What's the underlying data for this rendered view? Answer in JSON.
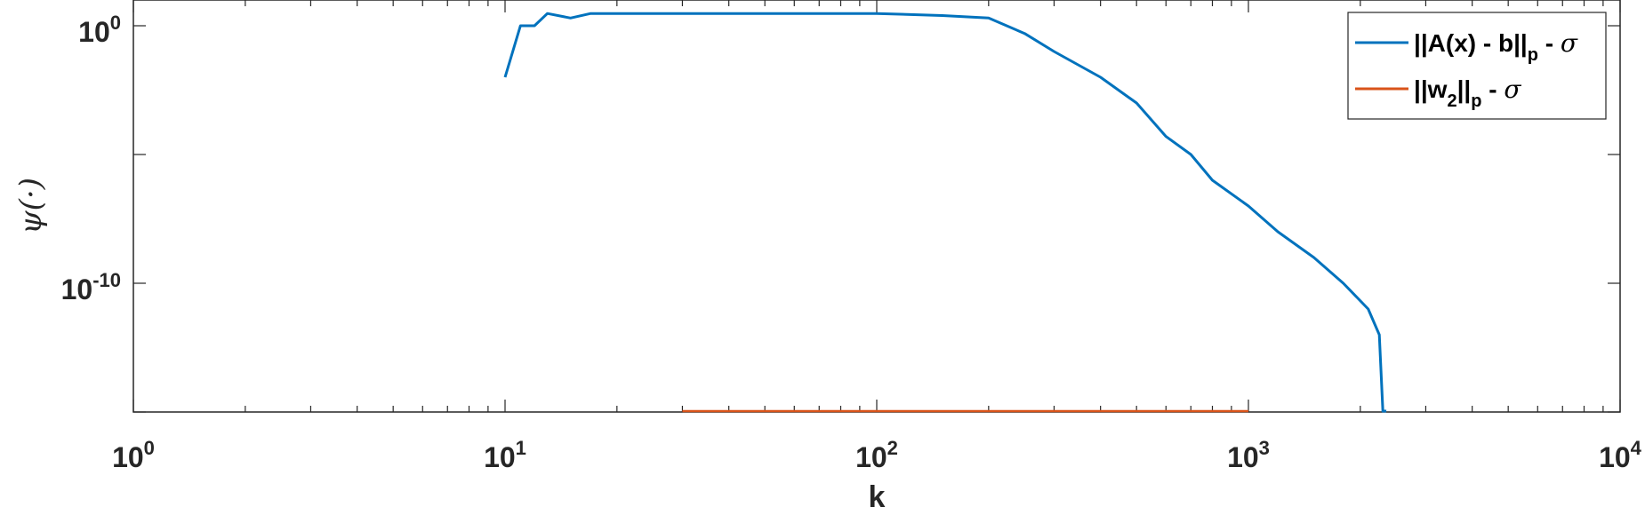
{
  "chart_data": {
    "type": "line",
    "xscale": "log",
    "yscale": "log",
    "xlabel": "k",
    "ylabel": "ψ(·)",
    "xlim": [
      1,
      10000
    ],
    "ylim": [
      1e-15,
      10.0
    ],
    "x_ticks": [
      {
        "base": "10",
        "exp": "0"
      },
      {
        "base": "10",
        "exp": "1"
      },
      {
        "base": "10",
        "exp": "2"
      },
      {
        "base": "10",
        "exp": "3"
      },
      {
        "base": "10",
        "exp": "4"
      }
    ],
    "y_ticks": [
      {
        "base": "10",
        "exp": "0"
      },
      {
        "base": "10",
        "exp": "-10"
      }
    ],
    "grid": false,
    "legend_position": "top-right",
    "series": [
      {
        "name": "||A(x) - b||p - σ",
        "legend_main": "||A(x) - b||",
        "legend_sub": "p",
        "legend_tail": " - ",
        "legend_sym": "σ",
        "color": "#0072BD",
        "x": [
          10,
          11,
          12,
          13,
          15,
          17,
          20,
          30,
          50,
          100,
          150,
          200,
          250,
          300,
          400,
          500,
          600,
          700,
          800,
          1000,
          1200,
          1500,
          1800,
          2100,
          2250,
          2300,
          2320,
          2340,
          2350
        ],
        "y": [
          0.01,
          1,
          1,
          3,
          2,
          3,
          3,
          3,
          3,
          3,
          2.5,
          2,
          0.5,
          0.1,
          0.01,
          0.001,
          5e-05,
          1e-05,
          1e-06,
          1e-07,
          1e-08,
          1e-09,
          1e-10,
          1e-11,
          1e-12,
          1e-15,
          1e-15,
          1e-15,
          1e-15
        ]
      },
      {
        "name": "||w2||p - σ",
        "legend_main": "||w",
        "legend_sub1": "2",
        "legend_mid": "||",
        "legend_sub": "p",
        "legend_tail": " - ",
        "legend_sym": "σ",
        "color": "#D95319",
        "x": [
          30,
          160,
          400,
          1000
        ],
        "y": [
          1e-15,
          1e-15,
          1e-15,
          1e-15
        ]
      }
    ]
  }
}
